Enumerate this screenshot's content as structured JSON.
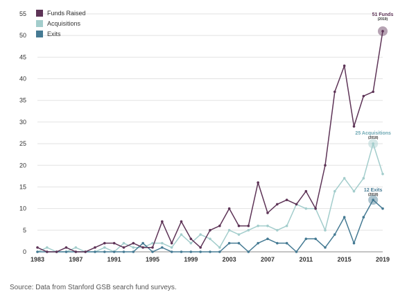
{
  "chart_data": {
    "type": "line",
    "title": "",
    "xlabel": "",
    "ylabel": "",
    "x": [
      1983,
      1984,
      1985,
      1986,
      1987,
      1988,
      1989,
      1990,
      1991,
      1992,
      1993,
      1994,
      1995,
      1996,
      1997,
      1998,
      1999,
      2000,
      2001,
      2002,
      2003,
      2004,
      2005,
      2006,
      2007,
      2008,
      2009,
      2010,
      2011,
      2012,
      2013,
      2014,
      2015,
      2016,
      2017,
      2018,
      2019
    ],
    "x_ticks": [
      1983,
      1987,
      1991,
      1995,
      1999,
      2003,
      2007,
      2011,
      2015,
      2019
    ],
    "y_ticks": [
      0,
      5,
      10,
      15,
      20,
      25,
      30,
      35,
      40,
      45,
      50,
      55
    ],
    "xlim": [
      1983,
      2019
    ],
    "ylim": [
      0,
      55
    ],
    "grid": "horizontal",
    "legend_position": "top-left",
    "series": [
      {
        "name": "Funds Raised",
        "color": "#5e3457",
        "values": [
          1,
          0,
          0,
          1,
          0,
          0,
          1,
          2,
          2,
          1,
          2,
          1,
          1,
          7,
          2,
          7,
          3,
          1,
          5,
          6,
          10,
          6,
          6,
          16,
          9,
          11,
          12,
          11,
          14,
          10,
          20,
          37,
          43,
          29,
          36,
          37,
          51
        ]
      },
      {
        "name": "Acquisitions",
        "color": "#a3cdcc",
        "values": [
          0,
          1,
          0,
          0,
          1,
          0,
          0,
          1,
          0,
          2,
          1,
          1,
          2,
          2,
          1,
          4,
          2,
          4,
          3,
          1,
          5,
          4,
          5,
          6,
          6,
          5,
          6,
          11,
          10,
          10,
          5,
          14,
          17,
          14,
          17,
          25,
          18
        ]
      },
      {
        "name": "Exits",
        "color": "#457a93",
        "values": [
          0,
          0,
          0,
          0,
          0,
          0,
          0,
          0,
          0,
          0,
          0,
          2,
          0,
          1,
          0,
          0,
          0,
          0,
          0,
          0,
          2,
          2,
          0,
          2,
          3,
          2,
          2,
          0,
          3,
          3,
          1,
          4,
          8,
          2,
          8,
          12,
          10
        ]
      }
    ],
    "annotations": [
      {
        "series": "Funds Raised",
        "label": "51 Funds",
        "sub": "(2019)",
        "x": 2019,
        "y": 51
      },
      {
        "series": "Acquisitions",
        "label": "25 Acquisitions",
        "sub": "(2018)",
        "x": 2018,
        "y": 25
      },
      {
        "series": "Exits",
        "label": "12 Exits",
        "sub": "(2018)",
        "x": 2018,
        "y": 12
      }
    ]
  },
  "source_text": "Source: Data from Stanford GSB search fund surveys."
}
